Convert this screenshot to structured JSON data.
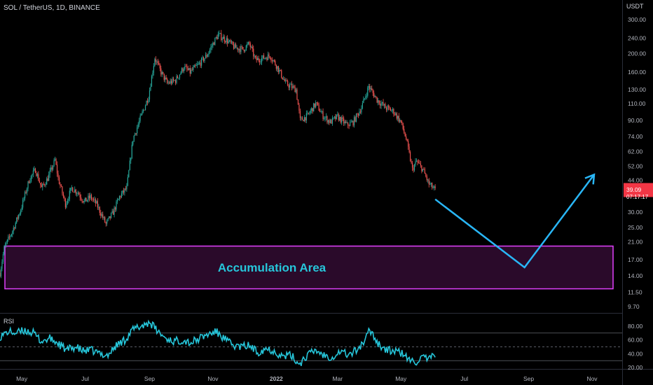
{
  "header": {
    "symbol_line": "SOL / TetherUS, 1D, BINANCE"
  },
  "price_axis": {
    "currency": "USDT",
    "ticks": [
      "300.00",
      "240.00",
      "200.00",
      "160.00",
      "130.00",
      "110.00",
      "90.00",
      "74.00",
      "62.00",
      "52.00",
      "44.00",
      "30.00",
      "25.00",
      "21.00",
      "17.00",
      "14.00",
      "11.50",
      "9.70"
    ],
    "last_price": "39.09",
    "countdown": "07:17:17",
    "last_price_color": "#f23645"
  },
  "time_axis": {
    "labels": [
      "May",
      "Jul",
      "Sep",
      "Nov",
      "2022",
      "Mar",
      "May",
      "Jul",
      "Sep",
      "Nov"
    ]
  },
  "annotations": {
    "zone_label": "Accumulation Area",
    "zone_range": [
      12.0,
      20.0
    ],
    "zone_border_color": "#e040fb",
    "zone_fill_color": "#2a0a2a",
    "label_color": "#26c6da",
    "path_color": "#29b6f6",
    "projection_path": [
      {
        "time": "2022-06-03",
        "price": 35
      },
      {
        "time": "2022-08-28",
        "price": 15.5
      },
      {
        "time": "2022-11-03",
        "price": 47
      }
    ]
  },
  "rsi": {
    "label": "RSI",
    "ticks": [
      "80.00",
      "60.00",
      "40.00",
      "20.00"
    ],
    "line_color": "#26c6da"
  },
  "chart_data": [
    {
      "type": "candlestick",
      "title": "SOL / TetherUS, 1D, BINANCE",
      "y_scale": "log",
      "ylim": [
        9.7,
        300
      ],
      "xlim": [
        "2021-04-10",
        "2022-11-30"
      ],
      "up_color": "#26a69a",
      "down_color": "#ef5350",
      "price_path": [
        [
          "2021-04-10",
          14.5
        ],
        [
          "2021-04-14",
          19.5
        ],
        [
          "2021-04-22",
          24
        ],
        [
          "2021-04-30",
          31
        ],
        [
          "2021-05-08",
          44
        ],
        [
          "2021-05-14",
          50
        ],
        [
          "2021-05-20",
          40
        ],
        [
          "2021-05-26",
          45
        ],
        [
          "2021-06-02",
          56
        ],
        [
          "2021-06-05",
          45
        ],
        [
          "2021-06-12",
          33
        ],
        [
          "2021-06-18",
          40
        ],
        [
          "2021-06-24",
          38
        ],
        [
          "2021-06-30",
          34
        ],
        [
          "2021-07-06",
          36
        ],
        [
          "2021-07-12",
          33
        ],
        [
          "2021-07-21",
          26
        ],
        [
          "2021-07-28",
          30
        ],
        [
          "2021-08-03",
          36
        ],
        [
          "2021-08-10",
          40
        ],
        [
          "2021-08-16",
          72
        ],
        [
          "2021-08-24",
          95
        ],
        [
          "2021-08-31",
          120
        ],
        [
          "2021-09-06",
          190
        ],
        [
          "2021-09-12",
          160
        ],
        [
          "2021-09-18",
          140
        ],
        [
          "2021-09-26",
          145
        ],
        [
          "2021-10-04",
          170
        ],
        [
          "2021-10-10",
          160
        ],
        [
          "2021-10-18",
          175
        ],
        [
          "2021-10-26",
          195
        ],
        [
          "2021-11-02",
          230
        ],
        [
          "2021-11-06",
          250
        ],
        [
          "2021-11-14",
          235
        ],
        [
          "2021-11-22",
          215
        ],
        [
          "2021-11-30",
          210
        ],
        [
          "2021-12-06",
          225
        ],
        [
          "2021-12-12",
          185
        ],
        [
          "2021-12-20",
          190
        ],
        [
          "2021-12-26",
          195
        ],
        [
          "2022-01-02",
          170
        ],
        [
          "2022-01-10",
          140
        ],
        [
          "2022-01-20",
          130
        ],
        [
          "2022-01-24",
          90
        ],
        [
          "2022-01-31",
          95
        ],
        [
          "2022-02-08",
          110
        ],
        [
          "2022-02-15",
          95
        ],
        [
          "2022-02-22",
          88
        ],
        [
          "2022-03-01",
          94
        ],
        [
          "2022-03-10",
          85
        ],
        [
          "2022-03-16",
          88
        ],
        [
          "2022-03-24",
          105
        ],
        [
          "2022-03-31",
          135
        ],
        [
          "2022-04-08",
          115
        ],
        [
          "2022-04-16",
          105
        ],
        [
          "2022-04-24",
          100
        ],
        [
          "2022-05-01",
          88
        ],
        [
          "2022-05-06",
          72
        ],
        [
          "2022-05-12",
          50
        ],
        [
          "2022-05-16",
          55
        ],
        [
          "2022-05-22",
          50
        ],
        [
          "2022-05-28",
          42
        ],
        [
          "2022-06-03",
          39.09
        ]
      ],
      "x_ticks": [
        "May",
        "Jul",
        "Sep",
        "Nov",
        "2022",
        "Mar",
        "May",
        "Jul",
        "Sep",
        "Nov"
      ],
      "y_ticks": [
        300,
        240,
        200,
        160,
        130,
        110,
        90,
        74,
        62,
        52,
        44,
        30,
        25,
        21,
        17,
        14,
        11.5,
        9.7
      ]
    },
    {
      "type": "line",
      "title": "RSI",
      "ylim": [
        12,
        98
      ],
      "y_ticks": [
        80,
        60,
        40,
        20
      ],
      "levels": [
        70,
        50,
        30
      ],
      "series": [
        {
          "values_path": [
            [
              "2021-04-10",
              65
            ],
            [
              "2021-04-18",
              72
            ],
            [
              "2021-04-26",
              70
            ],
            [
              "2021-05-04",
              74
            ],
            [
              "2021-05-12",
              70
            ],
            [
              "2021-05-20",
              58
            ],
            [
              "2021-05-28",
              62
            ],
            [
              "2021-06-05",
              55
            ],
            [
              "2021-06-13",
              45
            ],
            [
              "2021-06-21",
              50
            ],
            [
              "2021-06-29",
              44
            ],
            [
              "2021-07-07",
              45
            ],
            [
              "2021-07-15",
              40
            ],
            [
              "2021-07-23",
              38
            ],
            [
              "2021-07-31",
              52
            ],
            [
              "2021-08-08",
              60
            ],
            [
              "2021-08-16",
              75
            ],
            [
              "2021-08-24",
              80
            ],
            [
              "2021-09-01",
              86
            ],
            [
              "2021-09-09",
              72
            ],
            [
              "2021-09-17",
              62
            ],
            [
              "2021-09-25",
              58
            ],
            [
              "2021-10-03",
              60
            ],
            [
              "2021-10-11",
              56
            ],
            [
              "2021-10-19",
              62
            ],
            [
              "2021-10-27",
              68
            ],
            [
              "2021-11-04",
              72
            ],
            [
              "2021-11-12",
              62
            ],
            [
              "2021-11-20",
              52
            ],
            [
              "2021-11-28",
              50
            ],
            [
              "2021-12-06",
              52
            ],
            [
              "2021-12-14",
              42
            ],
            [
              "2021-12-22",
              48
            ],
            [
              "2021-12-30",
              44
            ],
            [
              "2022-01-07",
              36
            ],
            [
              "2022-01-15",
              38
            ],
            [
              "2022-01-23",
              25
            ],
            [
              "2022-01-31",
              38
            ],
            [
              "2022-02-08",
              45
            ],
            [
              "2022-02-16",
              38
            ],
            [
              "2022-02-24",
              35
            ],
            [
              "2022-03-04",
              44
            ],
            [
              "2022-03-12",
              38
            ],
            [
              "2022-03-20",
              46
            ],
            [
              "2022-03-28",
              60
            ],
            [
              "2022-04-01",
              76
            ],
            [
              "2022-04-09",
              55
            ],
            [
              "2022-04-17",
              45
            ],
            [
              "2022-04-25",
              44
            ],
            [
              "2022-05-03",
              40
            ],
            [
              "2022-05-09",
              30
            ],
            [
              "2022-05-15",
              28
            ],
            [
              "2022-05-21",
              34
            ],
            [
              "2022-05-27",
              32
            ],
            [
              "2022-06-03",
              36
            ]
          ]
        }
      ]
    }
  ]
}
